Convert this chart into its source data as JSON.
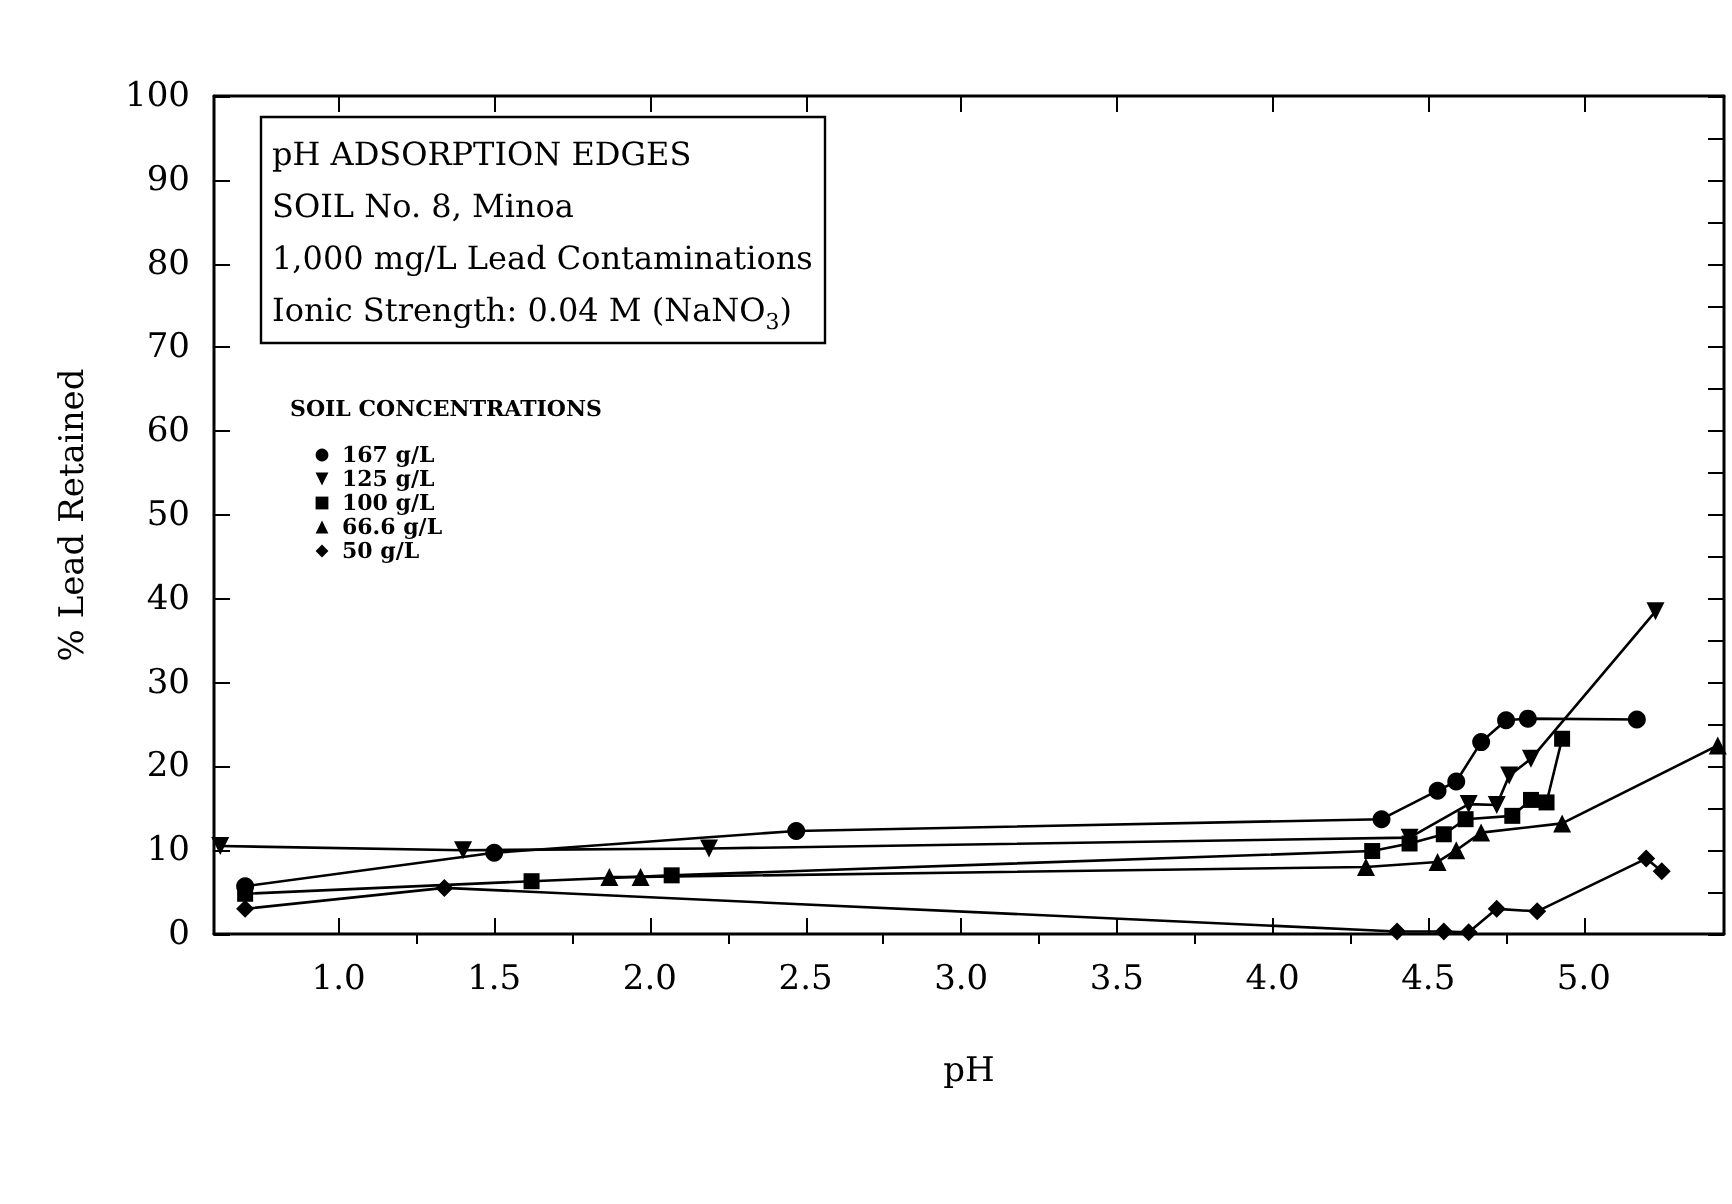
{
  "chart_data": {
    "type": "line",
    "title": "pH ADSORPTION EDGES",
    "subtitle": "SOIL No. 8, Minoa\n1,000 mg/L Lead Contaminations\nIonic Strength: 0.04 M (NaNO$_{3}$)",
    "xlabel": "pH",
    "ylabel": "% Lead Retained",
    "legend_title": "SOIL CONCENTRATIONS",
    "series": [
      {
        "name": "167 g/L",
        "color": "#000000",
        "marker": "circle",
        "x": [
          0.7,
          1.5,
          2.47,
          4.35,
          4.53,
          4.59,
          4.67,
          4.75,
          4.82,
          5.17
        ],
        "values": [
          5.7,
          9.7,
          12.3,
          13.7,
          17.1,
          18.2,
          22.9,
          25.5,
          25.7,
          25.6
        ]
      },
      {
        "name": "125 g/L",
        "color": "#000000",
        "marker": "triangle-down",
        "x": [
          0.62,
          1.4,
          2.19,
          4.44,
          4.63,
          4.72,
          4.76,
          4.83,
          5.23
        ],
        "values": [
          10.5,
          10,
          10.2,
          11.5,
          15.5,
          15.4,
          18.9,
          20.9,
          38.5
        ]
      },
      {
        "name": "100 g/L",
        "color": "#000000",
        "marker": "square",
        "x": [
          0.7,
          1.62,
          2.07,
          4.32,
          4.44,
          4.55,
          4.62,
          4.77,
          4.83,
          4.88,
          4.93
        ],
        "values": [
          4.8,
          6.3,
          7,
          9.9,
          10.8,
          11.9,
          13.7,
          14.1,
          16,
          15.7,
          23.3
        ]
      },
      {
        "name": "66.6 g/L",
        "color": "#000000",
        "marker": "triangle",
        "x": [
          1.87,
          1.97,
          4.3,
          4.53,
          4.59,
          4.67,
          4.93,
          5.43
        ],
        "values": [
          6.8,
          6.8,
          8,
          8.6,
          10,
          12.1,
          13.2,
          22.5
        ]
      },
      {
        "name": "50 g/L",
        "color": "#000000",
        "marker": "diamond",
        "x": [
          0.7,
          1.34,
          4.4,
          4.55,
          4.63,
          4.72,
          4.85,
          5.2,
          5.25
        ],
        "values": [
          3,
          5.5,
          0.3,
          0.3,
          0.2,
          3,
          2.7,
          9,
          7.5
        ]
      }
    ],
    "xlim": [
      0.6,
      5.45
    ],
    "xticks": [
      {
        "value": 1,
        "label": "1.0"
      },
      {
        "value": 1.5,
        "label": "1.5"
      },
      {
        "value": 2,
        "label": "2.0"
      },
      {
        "value": 2.5,
        "label": "2.5"
      },
      {
        "value": 3,
        "label": "3.0"
      },
      {
        "value": 3.5,
        "label": "3.5"
      },
      {
        "value": 4,
        "label": "4.0"
      },
      {
        "value": 4.5,
        "label": "4.5"
      },
      {
        "value": 5,
        "label": "5.0"
      }
    ],
    "ylim": [
      0,
      100
    ],
    "yticks": [
      0,
      10,
      20,
      30,
      40,
      50,
      60,
      70,
      80,
      90,
      100
    ],
    "legend": "top left",
    "grid": false,
    "line_style": "solid"
  }
}
